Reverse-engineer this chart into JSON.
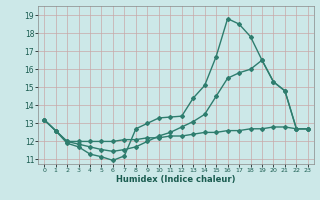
{
  "xlabel": "Humidex (Indice chaleur)",
  "xlim": [
    -0.5,
    23.5
  ],
  "ylim": [
    10.75,
    19.5
  ],
  "yticks": [
    11,
    12,
    13,
    14,
    15,
    16,
    17,
    18,
    19
  ],
  "xticks": [
    0,
    1,
    2,
    3,
    4,
    5,
    6,
    7,
    8,
    9,
    10,
    11,
    12,
    13,
    14,
    15,
    16,
    17,
    18,
    19,
    20,
    21,
    22,
    23
  ],
  "bg_color": "#cce8e8",
  "grid_color": "#c8a8a8",
  "line_color": "#2e7d6e",
  "line_width": 1.0,
  "marker": "D",
  "marker_size": 2.0,
  "curve1_x": [
    0,
    1,
    2,
    3,
    4,
    5,
    6,
    7,
    8,
    9,
    10,
    11,
    12,
    13,
    14,
    15,
    16,
    17,
    18,
    19,
    20,
    21,
    22,
    23
  ],
  "curve1_y": [
    13.2,
    12.6,
    11.9,
    11.7,
    11.3,
    11.15,
    10.95,
    11.2,
    12.7,
    13.0,
    13.3,
    13.35,
    13.4,
    14.4,
    15.1,
    16.7,
    18.8,
    18.5,
    17.8,
    16.5,
    15.3,
    14.8,
    12.7,
    12.7
  ],
  "curve2_x": [
    0,
    1,
    2,
    3,
    4,
    5,
    6,
    7,
    8,
    9,
    10,
    11,
    12,
    13,
    14,
    15,
    16,
    17,
    18,
    19,
    20,
    21,
    22,
    23
  ],
  "curve2_y": [
    13.2,
    12.6,
    12.0,
    11.85,
    11.7,
    11.55,
    11.45,
    11.55,
    11.7,
    12.0,
    12.3,
    12.5,
    12.8,
    13.1,
    13.5,
    14.5,
    15.5,
    15.8,
    16.0,
    16.5,
    15.3,
    14.8,
    12.7,
    12.7
  ],
  "curve3_x": [
    0,
    1,
    2,
    3,
    4,
    5,
    6,
    7,
    8,
    9,
    10,
    11,
    12,
    13,
    14,
    15,
    16,
    17,
    18,
    19,
    20,
    21,
    22,
    23
  ],
  "curve3_y": [
    13.2,
    12.6,
    12.0,
    12.0,
    12.0,
    12.0,
    12.0,
    12.1,
    12.1,
    12.2,
    12.2,
    12.3,
    12.3,
    12.4,
    12.5,
    12.5,
    12.6,
    12.6,
    12.7,
    12.7,
    12.8,
    12.8,
    12.7,
    12.7
  ]
}
